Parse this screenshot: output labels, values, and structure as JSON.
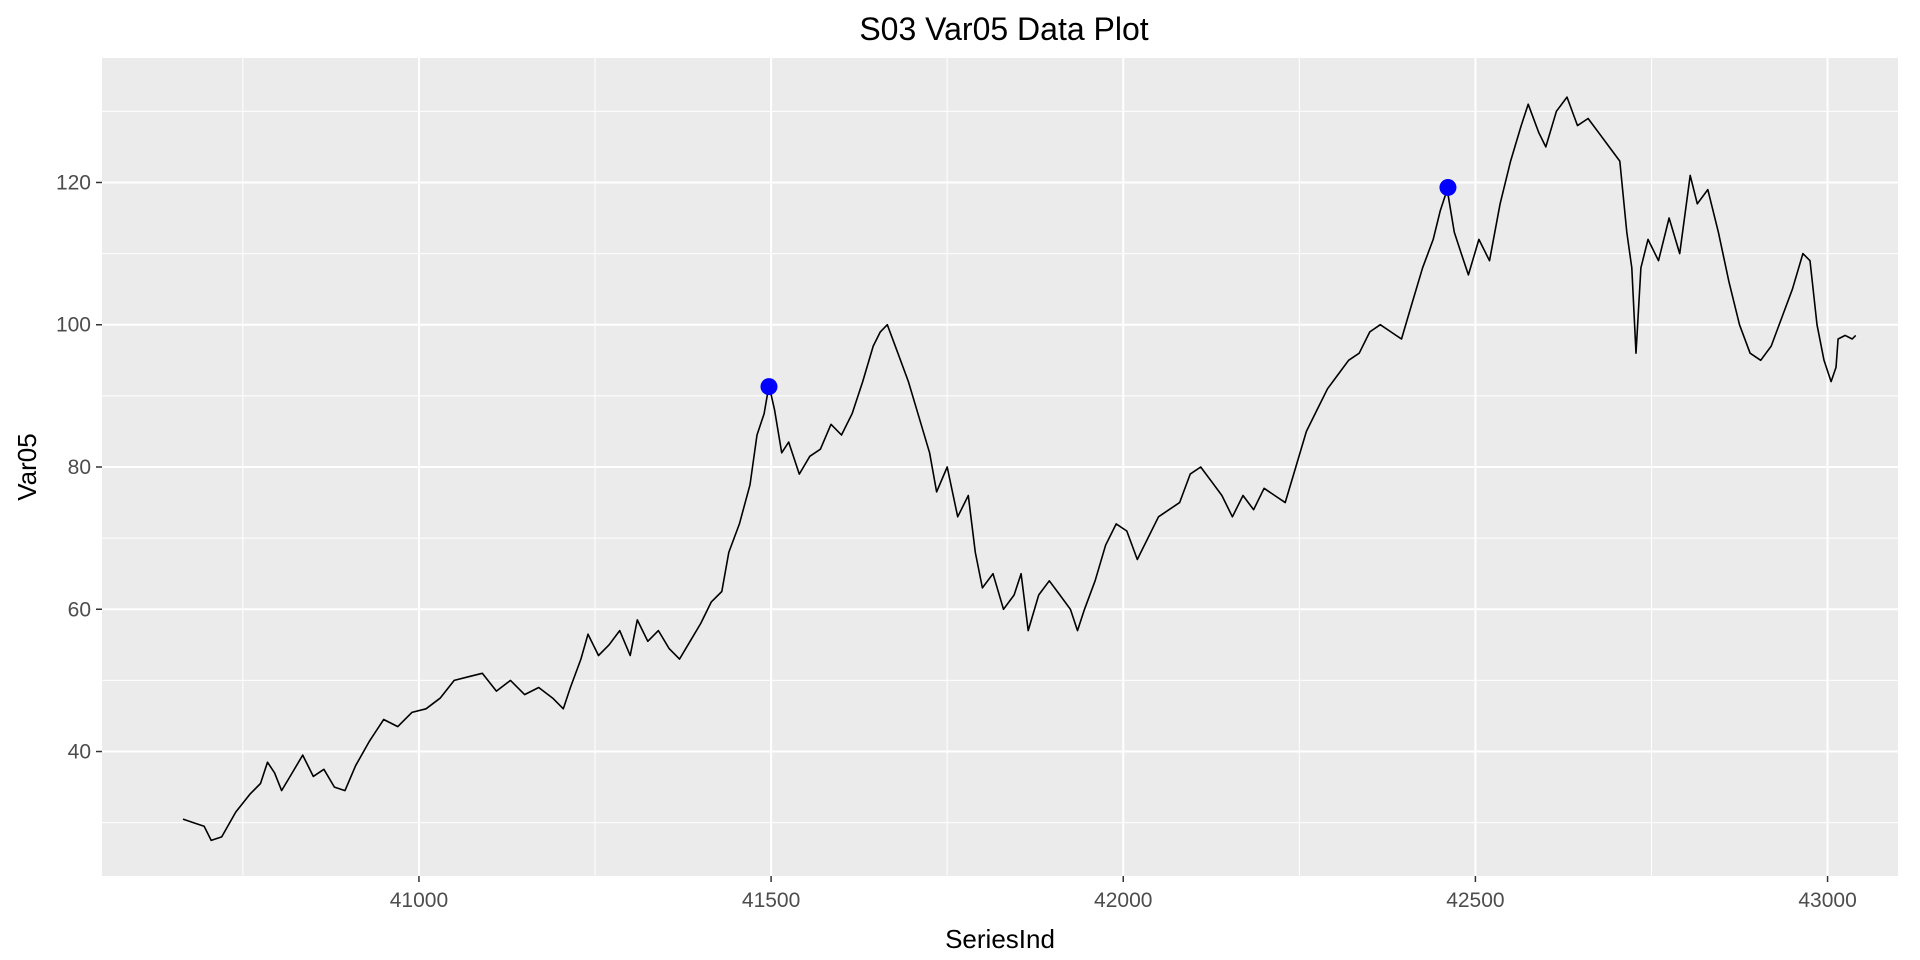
{
  "chart_data": {
    "type": "line",
    "title": "S03 Var05 Data Plot",
    "xlabel": "SeriesInd",
    "ylabel": "Var05",
    "xlim": [
      40550,
      43100
    ],
    "ylim": [
      22.5,
      137.5
    ],
    "x_ticks": [
      41000,
      41500,
      42000,
      42500,
      43000
    ],
    "x_tick_labels": [
      "41000",
      "41500",
      "42000",
      "42500",
      "43000"
    ],
    "y_ticks": [
      40,
      60,
      80,
      100,
      120
    ],
    "y_tick_labels": [
      "40",
      "60",
      "80",
      "100",
      "120"
    ],
    "grid": true,
    "background": "#EBEBEB",
    "grid_color": "#FFFFFF",
    "series": [
      {
        "color": "#000000",
        "points": [
          [
            40665,
            30.5
          ],
          [
            40680,
            30.0
          ],
          [
            40695,
            29.5
          ],
          [
            40705,
            27.5
          ],
          [
            40720,
            28.0
          ],
          [
            40740,
            31.5
          ],
          [
            40760,
            34.0
          ],
          [
            40775,
            35.5
          ],
          [
            40785,
            38.5
          ],
          [
            40795,
            37.0
          ],
          [
            40805,
            34.5
          ],
          [
            40820,
            37.0
          ],
          [
            40835,
            39.5
          ],
          [
            40850,
            36.5
          ],
          [
            40865,
            37.5
          ],
          [
            40880,
            35.0
          ],
          [
            40895,
            34.5
          ],
          [
            40910,
            38.0
          ],
          [
            40930,
            41.5
          ],
          [
            40950,
            44.5
          ],
          [
            40970,
            43.5
          ],
          [
            40990,
            45.5
          ],
          [
            41010,
            46.0
          ],
          [
            41030,
            47.5
          ],
          [
            41050,
            50.0
          ],
          [
            41070,
            50.5
          ],
          [
            41090,
            51.0
          ],
          [
            41110,
            48.5
          ],
          [
            41130,
            50.0
          ],
          [
            41150,
            48.0
          ],
          [
            41170,
            49.0
          ],
          [
            41190,
            47.5
          ],
          [
            41205,
            46.0
          ],
          [
            41215,
            49.0
          ],
          [
            41230,
            53.0
          ],
          [
            41240,
            56.5
          ],
          [
            41255,
            53.5
          ],
          [
            41270,
            55.0
          ],
          [
            41285,
            57.0
          ],
          [
            41300,
            53.5
          ],
          [
            41310,
            58.5
          ],
          [
            41325,
            55.5
          ],
          [
            41340,
            57.0
          ],
          [
            41355,
            54.5
          ],
          [
            41370,
            53.0
          ],
          [
            41385,
            55.5
          ],
          [
            41400,
            58.0
          ],
          [
            41415,
            61.0
          ],
          [
            41430,
            62.5
          ],
          [
            41440,
            68.0
          ],
          [
            41455,
            72.0
          ],
          [
            41470,
            77.5
          ],
          [
            41480,
            84.5
          ],
          [
            41490,
            87.5
          ],
          [
            41497,
            91.5
          ],
          [
            41505,
            88.0
          ],
          [
            41515,
            82.0
          ],
          [
            41525,
            83.5
          ],
          [
            41540,
            79.0
          ],
          [
            41555,
            81.5
          ],
          [
            41570,
            82.5
          ],
          [
            41585,
            86.0
          ],
          [
            41600,
            84.5
          ],
          [
            41615,
            87.5
          ],
          [
            41630,
            92.0
          ],
          [
            41645,
            97.0
          ],
          [
            41655,
            99.0
          ],
          [
            41665,
            100.0
          ],
          [
            41680,
            96.0
          ],
          [
            41695,
            92.0
          ],
          [
            41710,
            87.0
          ],
          [
            41725,
            82.0
          ],
          [
            41735,
            76.5
          ],
          [
            41750,
            80.0
          ],
          [
            41765,
            73.0
          ],
          [
            41780,
            76.0
          ],
          [
            41790,
            68.0
          ],
          [
            41800,
            63.0
          ],
          [
            41815,
            65.0
          ],
          [
            41830,
            60.0
          ],
          [
            41845,
            62.0
          ],
          [
            41855,
            65.0
          ],
          [
            41865,
            57.0
          ],
          [
            41880,
            62.0
          ],
          [
            41895,
            64.0
          ],
          [
            41910,
            62.0
          ],
          [
            41925,
            60.0
          ],
          [
            41935,
            57.0
          ],
          [
            41945,
            60.0
          ],
          [
            41960,
            64.0
          ],
          [
            41975,
            69.0
          ],
          [
            41990,
            72.0
          ],
          [
            42005,
            71.0
          ],
          [
            42020,
            67.0
          ],
          [
            42035,
            70.0
          ],
          [
            42050,
            73.0
          ],
          [
            42065,
            74.0
          ],
          [
            42080,
            75.0
          ],
          [
            42095,
            79.0
          ],
          [
            42110,
            80.0
          ],
          [
            42125,
            78.0
          ],
          [
            42140,
            76.0
          ],
          [
            42155,
            73.0
          ],
          [
            42170,
            76.0
          ],
          [
            42185,
            74.0
          ],
          [
            42200,
            77.0
          ],
          [
            42215,
            76.0
          ],
          [
            42230,
            75.0
          ],
          [
            42245,
            80.0
          ],
          [
            42260,
            85.0
          ],
          [
            42275,
            88.0
          ],
          [
            42290,
            91.0
          ],
          [
            42305,
            93.0
          ],
          [
            42320,
            95.0
          ],
          [
            42335,
            96.0
          ],
          [
            42350,
            99.0
          ],
          [
            42365,
            100.0
          ],
          [
            42380,
            99.0
          ],
          [
            42395,
            98.0
          ],
          [
            42410,
            103.0
          ],
          [
            42425,
            108.0
          ],
          [
            42440,
            112.0
          ],
          [
            42450,
            116.0
          ],
          [
            42460,
            119.0
          ],
          [
            42470,
            113.0
          ],
          [
            42480,
            110.0
          ],
          [
            42490,
            107.0
          ],
          [
            42505,
            112.0
          ],
          [
            42520,
            109.0
          ],
          [
            42535,
            117.0
          ],
          [
            42550,
            123.0
          ],
          [
            42565,
            128.0
          ],
          [
            42575,
            131.0
          ],
          [
            42590,
            127.0
          ],
          [
            42600,
            125.0
          ],
          [
            42615,
            130.0
          ],
          [
            42630,
            132.0
          ],
          [
            42645,
            128.0
          ],
          [
            42660,
            129.0
          ],
          [
            42675,
            127.0
          ],
          [
            42690,
            125.0
          ],
          [
            42705,
            123.0
          ],
          [
            42715,
            113.0
          ],
          [
            42722,
            108.0
          ],
          [
            42728,
            96.0
          ],
          [
            42735,
            108.0
          ],
          [
            42745,
            112.0
          ],
          [
            42760,
            109.0
          ],
          [
            42775,
            115.0
          ],
          [
            42790,
            110.0
          ],
          [
            42805,
            121.0
          ],
          [
            42815,
            117.0
          ],
          [
            42830,
            119.0
          ],
          [
            42845,
            113.0
          ],
          [
            42860,
            106.0
          ],
          [
            42875,
            100.0
          ],
          [
            42890,
            96.0
          ],
          [
            42905,
            95.0
          ],
          [
            42920,
            97.0
          ],
          [
            42935,
            101.0
          ],
          [
            42950,
            105.0
          ],
          [
            42965,
            110.0
          ],
          [
            42975,
            109.0
          ],
          [
            42985,
            100.0
          ],
          [
            42995,
            95.0
          ],
          [
            43005,
            92.0
          ],
          [
            43012,
            94.0
          ],
          [
            43015,
            98.0
          ],
          [
            43025,
            98.5
          ],
          [
            43035,
            98.0
          ],
          [
            43040,
            98.5
          ]
        ]
      }
    ],
    "highlights": {
      "color": "#0000FF",
      "points": [
        [
          41497,
          91.3
        ],
        [
          42461,
          119.3
        ]
      ]
    }
  }
}
